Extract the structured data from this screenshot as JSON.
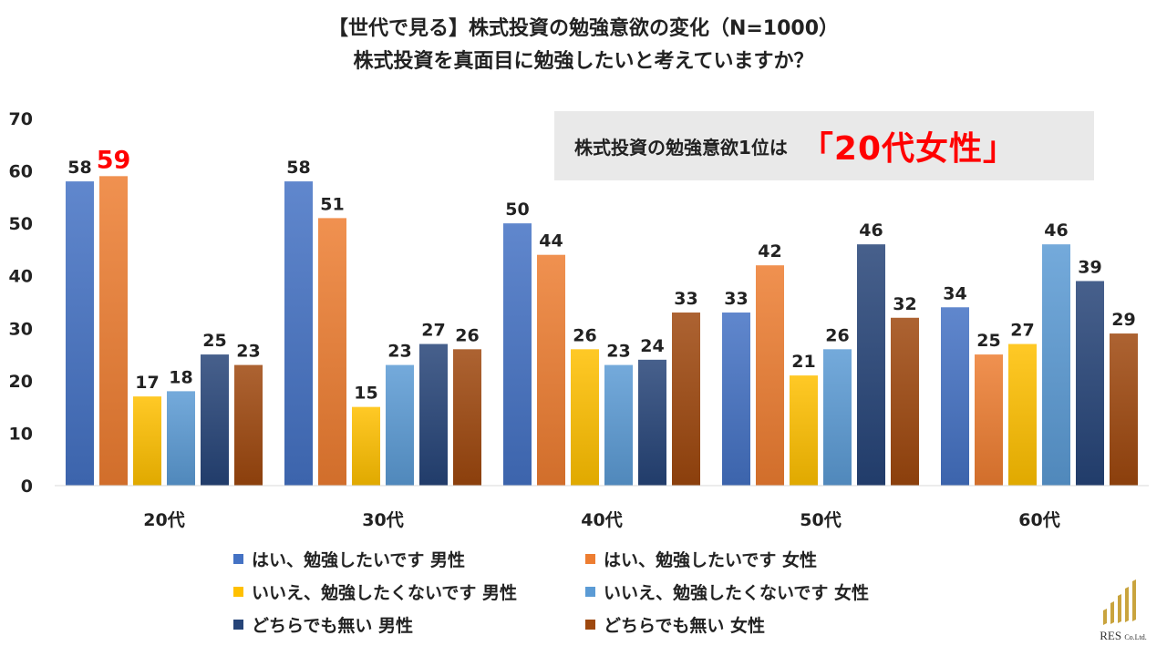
{
  "title": {
    "line1": "【世代で見る】株式投資の勉強意欲の変化（N=1000）",
    "line2": "株式投資を真面目に勉強したいと考えていますか？"
  },
  "callout": {
    "text": "株式投資の勉強意欲1位は",
    "highlight": "「20代女性」"
  },
  "logo": {
    "name": "RES",
    "suffix": "Co.Ltd."
  },
  "colors": {
    "highlight_label": "#ff0000"
  },
  "chart_data": {
    "type": "bar",
    "categories": [
      "20代",
      "30代",
      "40代",
      "50代",
      "60代"
    ],
    "ylim": [
      0,
      70
    ],
    "yticks": [
      0,
      10,
      20,
      30,
      40,
      50,
      60,
      70
    ],
    "grid": false,
    "legend_position": "bottom",
    "highlight": {
      "series": 1,
      "category": 0
    },
    "series": [
      {
        "name": "はい、勉強したいです 男性",
        "color": "#4472c4",
        "values": [
          58,
          58,
          50,
          33,
          34
        ]
      },
      {
        "name": "はい、勉強したいです 女性",
        "color": "#ed7d31",
        "values": [
          59,
          51,
          44,
          42,
          25
        ]
      },
      {
        "name": "いいえ、勉強したくないです 男性",
        "color": "#ffc000",
        "values": [
          17,
          15,
          26,
          21,
          27
        ]
      },
      {
        "name": "いいえ、勉強したくないです 女性",
        "color": "#5b9bd5",
        "values": [
          18,
          23,
          23,
          26,
          46
        ]
      },
      {
        "name": "どちらでも無い 男性",
        "color": "#264478",
        "values": [
          25,
          27,
          24,
          46,
          39
        ]
      },
      {
        "name": "どちらでも無い 女性",
        "color": "#9e480e",
        "values": [
          23,
          26,
          33,
          32,
          29
        ]
      }
    ]
  }
}
